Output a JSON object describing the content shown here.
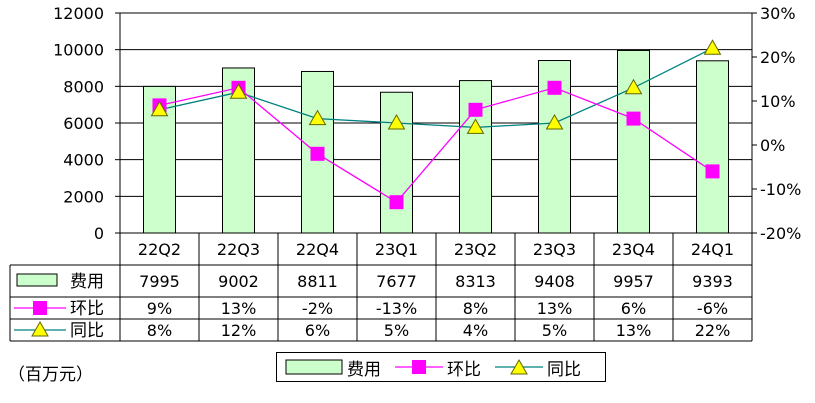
{
  "chart_data": {
    "type": "bar",
    "categories": [
      "22Q2",
      "22Q3",
      "22Q4",
      "23Q1",
      "23Q2",
      "23Q3",
      "23Q4",
      "24Q1"
    ],
    "series": [
      {
        "name": "费用",
        "type": "bar",
        "axis": "left",
        "color": "#ccffcc",
        "values": [
          7995,
          9002,
          8811,
          7677,
          8313,
          9408,
          9957,
          9393
        ],
        "labels": [
          "7995",
          "9002",
          "8811",
          "7677",
          "8313",
          "9408",
          "9957",
          "9393"
        ]
      },
      {
        "name": "环比",
        "type": "line",
        "axis": "right",
        "color": "#ff00ff",
        "marker": "square",
        "values": [
          9,
          13,
          -2,
          -13,
          8,
          13,
          6,
          -6
        ],
        "labels": [
          "9%",
          "13%",
          "-2%",
          "-13%",
          "8%",
          "13%",
          "6%",
          "-6%"
        ]
      },
      {
        "name": "同比",
        "type": "line",
        "axis": "right",
        "color": "#008080",
        "marker": "triangle",
        "values": [
          8,
          12,
          6,
          5,
          4,
          5,
          13,
          22
        ],
        "labels": [
          "8%",
          "12%",
          "6%",
          "5%",
          "4%",
          "5%",
          "13%",
          "22%"
        ]
      }
    ],
    "y_left": {
      "min": 0,
      "max": 12000,
      "step": 2000,
      "ticks": [
        "0",
        "2000",
        "4000",
        "6000",
        "8000",
        "10000",
        "12000"
      ]
    },
    "y_right": {
      "min": -20,
      "max": 30,
      "step": 10,
      "ticks": [
        "-20%",
        "-10%",
        "0%",
        "10%",
        "20%",
        "30%"
      ]
    },
    "grid": true,
    "legend_position": "bottom-center",
    "data_table": true
  },
  "unit_note": "（百万元）"
}
